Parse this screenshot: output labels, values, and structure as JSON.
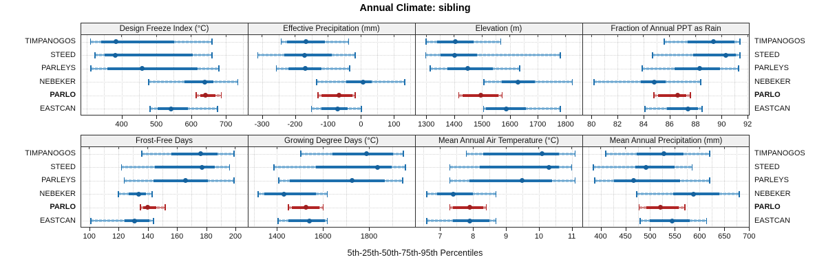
{
  "title": "Annual Climate: sibling",
  "xlabel": "5th-25th-50th-75th-95th Percentiles",
  "sites": [
    "TIMPANOGOS",
    "STEED",
    "PARLEYS",
    "NEBEKER",
    "PARLO",
    "EASTCAN"
  ],
  "highlight_site": "PARLO",
  "colors": {
    "normal": "#1d6fad",
    "normal_core": "#6da7d0",
    "normal_light": "#abcde5",
    "normal_dot": "#15629e",
    "highlight": "#b22424",
    "highlight_core": "#cf8080",
    "highlight_light": "#e2abab",
    "highlight_dot": "#9f1f1f",
    "grid": "#cfcfcf",
    "strip_bg": "#f0f0f0",
    "border": "#2e2e2e",
    "text": "#111111"
  },
  "chart_data": {
    "type": "dotplot-percentiles",
    "title": "Annual Climate: sibling",
    "xlabel": "5th-25th-50th-75th-95th Percentiles",
    "percentile_labels": [
      "5th",
      "25th",
      "50th",
      "75th",
      "95th"
    ],
    "legend_position": "none",
    "grid": "dotted",
    "panels": [
      {
        "title": "Design Freeze Index (°C)",
        "row": 0,
        "xlim": [
          282,
          763
        ],
        "ticks": [
          400,
          500,
          600,
          700
        ],
        "grid_step": 50,
        "values": {
          "TIMPANOGOS": [
            311,
            341,
            384,
            551,
            660
          ],
          "STEED": [
            323,
            352,
            382,
            604,
            660
          ],
          "PARLEYS": [
            312,
            359,
            460,
            619,
            680
          ],
          "NEBEKER": [
            478,
            581,
            639,
            665,
            734
          ],
          "PARLO": [
            615,
            626,
            641,
            670,
            687
          ],
          "EASTCAN": [
            482,
            504,
            543,
            590,
            676
          ]
        }
      },
      {
        "title": "Effective Precipitation (mm)",
        "row": 0,
        "xlim": [
          -343,
          164
        ],
        "ticks": [
          -300,
          -200,
          -100,
          0,
          100
        ],
        "grid_step": 50,
        "values": {
          "TIMPANOGOS": [
            -242,
            -224,
            -167,
            -110,
            -37
          ],
          "STEED": [
            -313,
            -232,
            -171,
            -88,
            -17
          ],
          "PARLEYS": [
            -256,
            -220,
            -168,
            -119,
            -34
          ],
          "NEBEKER": [
            -134,
            -44,
            6,
            33,
            133
          ],
          "PARLO": [
            -130,
            -120,
            -66,
            -25,
            -17
          ],
          "EASTCAN": [
            -150,
            -119,
            -70,
            -41,
            1
          ]
        }
      },
      {
        "title": "Elevation (m)",
        "row": 0,
        "xlim": [
          1260,
          1860
        ],
        "ticks": [
          1300,
          1400,
          1500,
          1600,
          1700,
          1800
        ],
        "grid_step": 50,
        "values": {
          "TIMPANOGOS": [
            1300,
            1340,
            1405,
            1470,
            1567
          ],
          "STEED": [
            1298,
            1352,
            1401,
            1483,
            1781
          ],
          "PARLEYS": [
            1315,
            1376,
            1450,
            1539,
            1635
          ],
          "NEBEKER": [
            1507,
            1572,
            1629,
            1689,
            1824
          ],
          "PARLO": [
            1417,
            1430,
            1497,
            1560,
            1572
          ],
          "EASTCAN": [
            1506,
            1515,
            1586,
            1658,
            1781
          ]
        }
      },
      {
        "title": "Fraction of Annual PPT as Rain",
        "row": 0,
        "xlim": [
          79.3,
          92.15
        ],
        "ticks": [
          80,
          82,
          84,
          86,
          88,
          90,
          92
        ],
        "grid_step": 1,
        "values": {
          "TIMPANOGOS": [
            85.6,
            87.4,
            89.4,
            91.0,
            91.4
          ],
          "STEED": [
            84.7,
            87.8,
            90.3,
            91.1,
            91.4
          ],
          "PARLEYS": [
            83.9,
            86.4,
            88.3,
            89.9,
            91.3
          ],
          "NEBEKER": [
            80.2,
            83.8,
            84.8,
            85.7,
            88.4
          ],
          "PARLO": [
            84.8,
            85.1,
            86.6,
            87.3,
            87.6
          ],
          "EASTCAN": [
            84.1,
            85.8,
            87.4,
            88.2,
            88.5
          ]
        }
      },
      {
        "title": "Frost-Free Days",
        "row": 1,
        "xlim": [
          94,
          208.5
        ],
        "ticks": [
          100,
          120,
          140,
          160,
          180,
          200
        ],
        "grid_step": 10,
        "values": {
          "TIMPANOGOS": [
            136,
            156,
            176,
            188,
            199
          ],
          "STEED": [
            122,
            145,
            177,
            186,
            196
          ],
          "PARLEYS": [
            124,
            144,
            166,
            181,
            199
          ],
          "NEBEKER": [
            120,
            127,
            134,
            139,
            143
          ],
          "PARLO": [
            135,
            137,
            140,
            146,
            152
          ],
          "EASTCAN": [
            101,
            124,
            131,
            141,
            144
          ]
        }
      },
      {
        "title": "Growing Degree Days (°C)",
        "row": 1,
        "xlim": [
          1274,
          2000
        ],
        "ticks": [
          1400,
          1600,
          1800
        ],
        "grid_step": 100,
        "values": {
          "TIMPANOGOS": [
            1504,
            1640,
            1790,
            1903,
            1949
          ],
          "STEED": [
            1387,
            1570,
            1838,
            1899,
            1959
          ],
          "PARLEYS": [
            1409,
            1456,
            1727,
            1869,
            1947
          ],
          "NEBEKER": [
            1319,
            1346,
            1432,
            1569,
            1619
          ],
          "PARLO": [
            1450,
            1466,
            1525,
            1585,
            1601
          ],
          "EASTCAN": [
            1406,
            1450,
            1542,
            1608,
            1619
          ]
        }
      },
      {
        "title": "Mean Annual Air Temperature (°C)",
        "row": 1,
        "xlim": [
          6.24,
          11.32
        ],
        "ticks": [
          7,
          8,
          9,
          10,
          11
        ],
        "grid_step": 0.5,
        "values": {
          "TIMPANOGOS": [
            7.8,
            8.3,
            10.1,
            10.6,
            11.1
          ],
          "STEED": [
            7.3,
            8.2,
            10.3,
            10.6,
            11.0
          ],
          "PARLEYS": [
            7.3,
            7.9,
            9.5,
            10.4,
            11.1
          ],
          "NEBEKER": [
            6.6,
            6.9,
            7.4,
            8.0,
            8.7
          ],
          "PARLO": [
            7.3,
            7.4,
            7.9,
            8.3,
            8.4
          ],
          "EASTCAN": [
            6.6,
            7.4,
            7.9,
            8.5,
            8.7
          ]
        }
      },
      {
        "title": "Mean Annual Precipitation (mm)",
        "row": 1,
        "xlim": [
          363,
          701
        ],
        "ticks": [
          400,
          450,
          500,
          550,
          600,
          650,
          700
        ],
        "grid_step": 25,
        "values": {
          "TIMPANOGOS": [
            410,
            473,
            528,
            567,
            620
          ],
          "STEED": [
            385,
            470,
            492,
            550,
            585
          ],
          "PARLEYS": [
            388,
            427,
            467,
            560,
            620
          ],
          "NEBEKER": [
            473,
            546,
            588,
            640,
            680
          ],
          "PARLO": [
            478,
            493,
            521,
            558,
            570
          ],
          "EASTCAN": [
            480,
            500,
            545,
            580,
            614
          ]
        }
      }
    ]
  }
}
